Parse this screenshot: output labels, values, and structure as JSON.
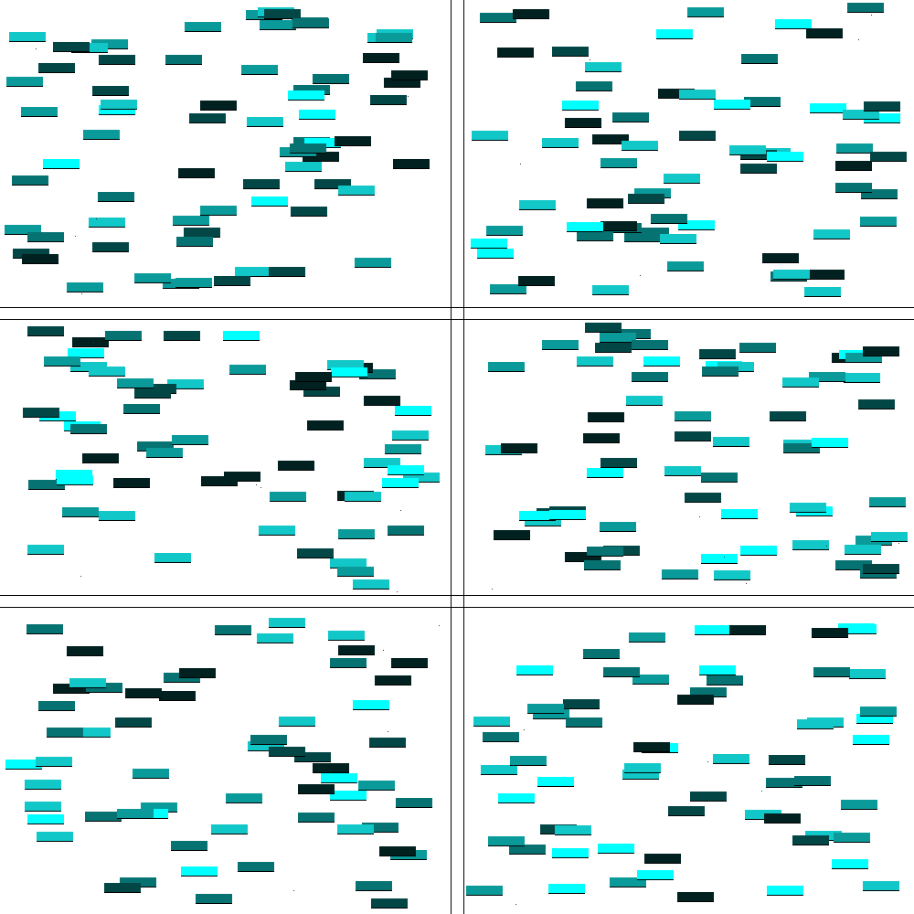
{
  "palette": {
    "background": "#ffffff",
    "grid_line": "#000000",
    "bar_colors": [
      "#00ffff",
      "#11c7c7",
      "#0a9a9a",
      "#067272",
      "#034646",
      "#012020"
    ]
  },
  "grid": {
    "columns": 2,
    "rows": 3
  },
  "bar_count_per_panel": [
    70,
    68,
    60,
    66,
    60,
    62
  ]
}
